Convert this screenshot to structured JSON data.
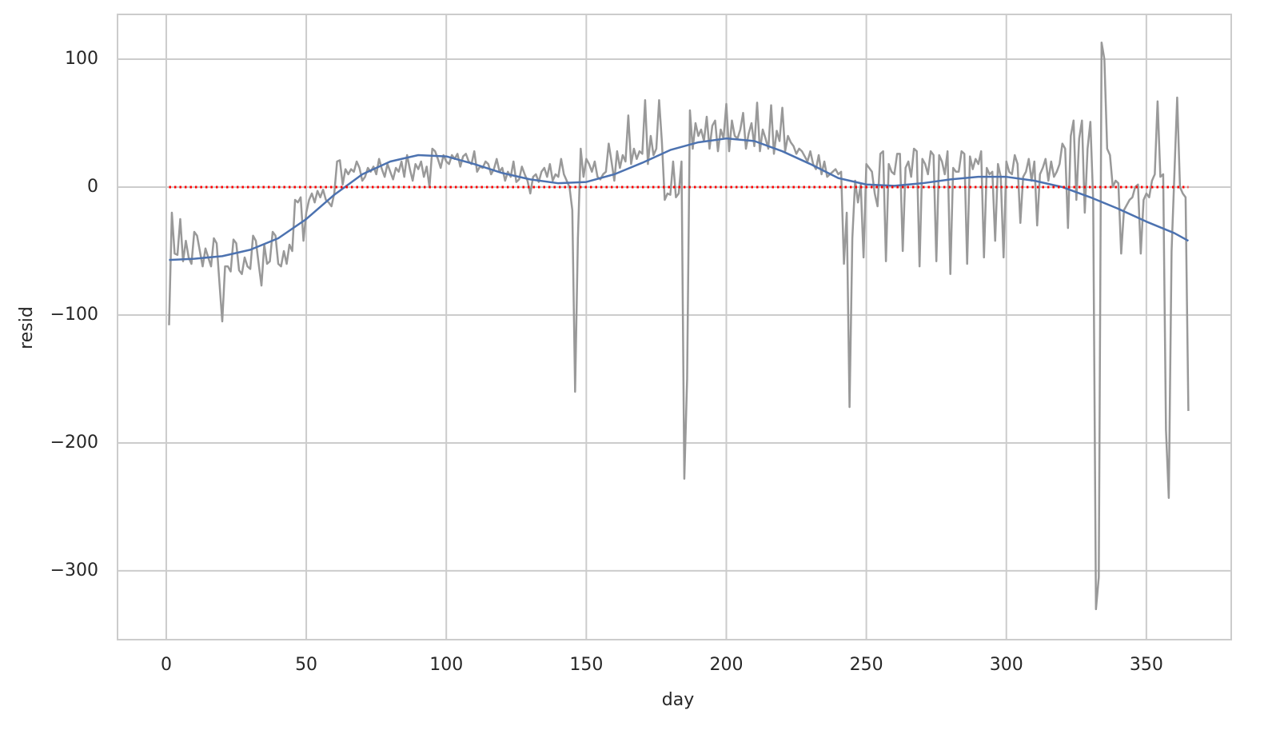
{
  "chart_data": {
    "type": "line",
    "xlabel": "day",
    "ylabel": "resid",
    "xlim": [
      -17.4,
      380.3
    ],
    "ylim": [
      -353.8,
      135
    ],
    "xticks": [
      0,
      50,
      100,
      150,
      200,
      250,
      300,
      350
    ],
    "yticks": [
      {
        "value": -300,
        "label": "−300"
      },
      {
        "value": -200,
        "label": "−200"
      },
      {
        "value": -100,
        "label": "−100"
      },
      0,
      100
    ],
    "grid": true,
    "series": [
      {
        "color": "#999999",
        "style": "solid",
        "x": [
          1,
          2,
          3,
          4,
          5,
          6,
          7,
          8,
          9,
          10,
          11,
          12,
          13,
          14,
          15,
          16,
          17,
          18,
          19,
          20,
          21,
          22,
          23,
          24,
          25,
          26,
          27,
          28,
          29,
          30,
          31,
          32,
          33,
          34,
          35,
          36,
          37,
          38,
          39,
          40,
          41,
          42,
          43,
          44,
          45,
          46,
          47,
          48,
          49,
          50,
          51,
          52,
          53,
          54,
          55,
          56,
          57,
          58,
          59,
          60,
          61,
          62,
          63,
          64,
          65,
          66,
          67,
          68,
          69,
          70,
          71,
          72,
          73,
          74,
          75,
          76,
          77,
          78,
          79,
          80,
          81,
          82,
          83,
          84,
          85,
          86,
          87,
          88,
          89,
          90,
          91,
          92,
          93,
          94,
          95,
          96,
          97,
          98,
          99,
          100,
          101,
          102,
          103,
          104,
          105,
          106,
          107,
          108,
          109,
          110,
          111,
          112,
          113,
          114,
          115,
          116,
          117,
          118,
          119,
          120,
          121,
          122,
          123,
          124,
          125,
          126,
          127,
          128,
          129,
          130,
          131,
          132,
          133,
          134,
          135,
          136,
          137,
          138,
          139,
          140,
          141,
          142,
          143,
          144,
          145,
          146,
          147,
          148,
          149,
          150,
          151,
          152,
          153,
          154,
          155,
          156,
          157,
          158,
          159,
          160,
          161,
          162,
          163,
          164,
          165,
          166,
          167,
          168,
          169,
          170,
          171,
          172,
          173,
          174,
          175,
          176,
          177,
          178,
          179,
          180,
          181,
          182,
          183,
          184,
          185,
          186,
          187,
          188,
          189,
          190,
          191,
          192,
          193,
          194,
          195,
          196,
          197,
          198,
          199,
          200,
          201,
          202,
          203,
          204,
          205,
          206,
          207,
          208,
          209,
          210,
          211,
          212,
          213,
          214,
          215,
          216,
          217,
          218,
          219,
          220,
          221,
          222,
          223,
          224,
          225,
          226,
          227,
          228,
          229,
          230,
          231,
          232,
          233,
          234,
          235,
          236,
          237,
          238,
          239,
          240,
          241,
          242,
          243,
          244,
          245,
          246,
          247,
          248,
          249,
          250,
          251,
          252,
          253,
          254,
          255,
          256,
          257,
          258,
          259,
          260,
          261,
          262,
          263,
          264,
          265,
          266,
          267,
          268,
          269,
          270,
          271,
          272,
          273,
          274,
          275,
          276,
          277,
          278,
          279,
          280,
          281,
          282,
          283,
          284,
          285,
          286,
          287,
          288,
          289,
          290,
          291,
          292,
          293,
          294,
          295,
          296,
          297,
          298,
          299,
          300,
          301,
          302,
          303,
          304,
          305,
          306,
          307,
          308,
          309,
          310,
          311,
          312,
          313,
          314,
          315,
          316,
          317,
          318,
          319,
          320,
          321,
          322,
          323,
          324,
          325,
          326,
          327,
          328,
          329,
          330,
          331,
          332,
          333,
          334,
          335,
          336,
          337,
          338,
          339,
          340,
          341,
          342,
          343,
          344,
          345,
          346,
          347,
          348,
          349,
          350,
          351,
          352,
          353,
          354,
          355,
          356,
          357,
          358,
          359,
          360,
          361,
          362,
          363,
          364,
          365
        ],
        "values": [
          -108,
          -20,
          -52,
          -53,
          -25,
          -58,
          -42,
          -55,
          -60,
          -35,
          -38,
          -50,
          -62,
          -48,
          -55,
          -62,
          -40,
          -44,
          -75,
          -105,
          -62,
          -62,
          -66,
          -41,
          -44,
          -65,
          -68,
          -55,
          -62,
          -64,
          -38,
          -42,
          -60,
          -77,
          -45,
          -60,
          -58,
          -35,
          -38,
          -60,
          -62,
          -50,
          -60,
          -45,
          -50,
          -10,
          -12,
          -8,
          -42,
          -20,
          -10,
          -5,
          -12,
          -3,
          -8,
          -2,
          -10,
          -12,
          -15,
          -5,
          20,
          21,
          2,
          14,
          10,
          14,
          12,
          20,
          15,
          5,
          8,
          15,
          12,
          16,
          10,
          22,
          14,
          8,
          18,
          12,
          6,
          15,
          12,
          20,
          8,
          25,
          14,
          5,
          18,
          14,
          20,
          8,
          16,
          0,
          30,
          28,
          22,
          15,
          25,
          20,
          18,
          25,
          22,
          26,
          16,
          24,
          26,
          20,
          18,
          28,
          12,
          16,
          15,
          20,
          18,
          10,
          14,
          22,
          12,
          15,
          5,
          12,
          8,
          20,
          4,
          6,
          16,
          10,
          5,
          -5,
          8,
          10,
          4,
          12,
          15,
          8,
          18,
          5,
          10,
          8,
          22,
          10,
          5,
          0,
          -18,
          -160,
          -40,
          30,
          8,
          22,
          18,
          12,
          20,
          8,
          6,
          10,
          12,
          34,
          20,
          5,
          28,
          15,
          25,
          20,
          56,
          18,
          30,
          22,
          28,
          26,
          68,
          18,
          40,
          25,
          30,
          68,
          35,
          -10,
          -5,
          -6,
          20,
          -8,
          -5,
          20,
          -228,
          -150,
          60,
          30,
          50,
          40,
          45,
          36,
          55,
          30,
          48,
          52,
          28,
          45,
          38,
          65,
          28,
          52,
          40,
          38,
          45,
          58,
          30,
          42,
          50,
          32,
          66,
          28,
          45,
          38,
          30,
          64,
          26,
          44,
          36,
          62,
          28,
          40,
          35,
          32,
          26,
          30,
          28,
          24,
          20,
          28,
          18,
          14,
          25,
          10,
          20,
          8,
          10,
          12,
          14,
          10,
          12,
          -60,
          -20,
          -172,
          -40,
          5,
          -12,
          2,
          -55,
          18,
          15,
          12,
          -5,
          -15,
          26,
          28,
          -58,
          18,
          12,
          10,
          26,
          26,
          -50,
          15,
          20,
          8,
          30,
          28,
          -62,
          22,
          18,
          10,
          28,
          25,
          -58,
          25,
          20,
          10,
          28,
          -68,
          15,
          12,
          12,
          28,
          26,
          -60,
          24,
          14,
          22,
          18,
          28,
          -55,
          15,
          10,
          12,
          -42,
          18,
          8,
          -55,
          20,
          12,
          10,
          25,
          18,
          -28,
          8,
          12,
          22,
          5,
          20,
          -30,
          10,
          15,
          22,
          5,
          20,
          8,
          12,
          18,
          34,
          30,
          -32,
          40,
          52,
          -10,
          38,
          52,
          -20,
          30,
          51,
          -10,
          -330,
          -305,
          113,
          100,
          30,
          25,
          0,
          5,
          3,
          -52,
          -18,
          -14,
          -10,
          -8,
          0,
          2,
          -52,
          -10,
          -5,
          -8,
          5,
          10,
          67,
          8,
          10,
          -190,
          -243,
          -50,
          10,
          70,
          0,
          -5,
          -8,
          -175
        ]
      },
      {
        "color": "#4c72b0",
        "style": "solid",
        "x": [
          1,
          10,
          20,
          30,
          40,
          50,
          60,
          70,
          80,
          90,
          100,
          110,
          120,
          130,
          140,
          150,
          160,
          170,
          180,
          190,
          200,
          210,
          220,
          230,
          240,
          250,
          260,
          270,
          280,
          290,
          300,
          310,
          320,
          330,
          340,
          350,
          360,
          365
        ],
        "values": [
          -57,
          -56,
          -54,
          -49,
          -40,
          -25,
          -6,
          10,
          20,
          25,
          24,
          18,
          11,
          6,
          3,
          4,
          10,
          19,
          29,
          35,
          38,
          36,
          28,
          18,
          7,
          2,
          1,
          3,
          6,
          8,
          8,
          5,
          0,
          -8,
          -17,
          -27,
          -36,
          -42
        ]
      },
      {
        "color": "#ff0000",
        "style": "dotted",
        "x": [
          1,
          365
        ],
        "values": [
          0,
          0
        ]
      }
    ]
  }
}
